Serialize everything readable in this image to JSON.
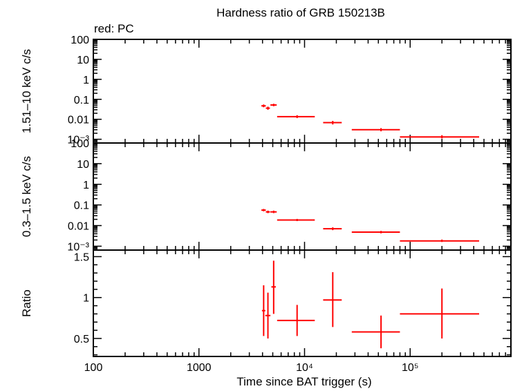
{
  "chart_data": {
    "type": "scatter",
    "title": "Hardness ratio of GRB 150213B",
    "series_label": "red: PC",
    "xlabel": "Time since BAT trigger (s)",
    "xscale": "log",
    "xlim": [
      100,
      900000
    ],
    "x_tick_labels": [
      "100",
      "1000",
      "10⁴",
      "10⁵"
    ],
    "x_tick_values": [
      100,
      1000,
      10000,
      100000
    ],
    "color": "#ff0000",
    "panels": [
      {
        "id": "hard",
        "ylabel": "1.51–10 keV c/s",
        "yscale": "log",
        "ylim": [
          0.00065,
          100
        ],
        "y_tick_labels": [
          "100",
          "10",
          "1",
          "0.1",
          "0.01",
          "10⁻³"
        ],
        "y_tick_values": [
          100,
          10,
          1,
          0.1,
          0.01,
          0.001
        ],
        "points": [
          {
            "x": 4100,
            "xlo": 3900,
            "xhi": 4300,
            "y": 0.047,
            "ylo": 0.04,
            "yhi": 0.055
          },
          {
            "x": 4500,
            "xlo": 4300,
            "xhi": 4700,
            "y": 0.036,
            "ylo": 0.03,
            "yhi": 0.043
          },
          {
            "x": 5100,
            "xlo": 4750,
            "xhi": 5450,
            "y": 0.052,
            "ylo": 0.045,
            "yhi": 0.06
          },
          {
            "x": 8500,
            "xlo": 5500,
            "xhi": 12500,
            "y": 0.0135,
            "ylo": 0.0115,
            "yhi": 0.016
          },
          {
            "x": 18500,
            "xlo": 15000,
            "xhi": 22500,
            "y": 0.0068,
            "ylo": 0.0055,
            "yhi": 0.0083
          },
          {
            "x": 53000,
            "xlo": 28000,
            "xhi": 80000,
            "y": 0.003,
            "ylo": 0.0025,
            "yhi": 0.0036
          },
          {
            "x": 200000,
            "xlo": 80000,
            "xhi": 450000,
            "y": 0.0013,
            "ylo": 0.0011,
            "yhi": 0.0016
          }
        ]
      },
      {
        "id": "soft",
        "ylabel": "0.3–1.5 keV c/s",
        "yscale": "log",
        "ylim": [
          0.00065,
          100
        ],
        "y_tick_labels": [
          "100",
          "10",
          "1",
          "0.1",
          "0.01",
          "10⁻³"
        ],
        "y_tick_values": [
          100,
          10,
          1,
          0.1,
          0.01,
          0.001
        ],
        "points": [
          {
            "x": 4100,
            "xlo": 3900,
            "xhi": 4300,
            "y": 0.056,
            "ylo": 0.049,
            "yhi": 0.064
          },
          {
            "x": 4500,
            "xlo": 4300,
            "xhi": 4700,
            "y": 0.046,
            "ylo": 0.04,
            "yhi": 0.053
          },
          {
            "x": 5100,
            "xlo": 4750,
            "xhi": 5450,
            "y": 0.046,
            "ylo": 0.04,
            "yhi": 0.053
          },
          {
            "x": 8500,
            "xlo": 5500,
            "xhi": 12500,
            "y": 0.0185,
            "ylo": 0.0165,
            "yhi": 0.021
          },
          {
            "x": 18500,
            "xlo": 15000,
            "xhi": 22500,
            "y": 0.007,
            "ylo": 0.006,
            "yhi": 0.0082
          },
          {
            "x": 53000,
            "xlo": 28000,
            "xhi": 80000,
            "y": 0.0048,
            "ylo": 0.0042,
            "yhi": 0.0055
          },
          {
            "x": 200000,
            "xlo": 80000,
            "xhi": 450000,
            "y": 0.0018,
            "ylo": 0.0016,
            "yhi": 0.0021
          }
        ]
      },
      {
        "id": "ratio",
        "ylabel": "Ratio",
        "yscale": "linear",
        "ylim": [
          0.28,
          1.58
        ],
        "y_tick_labels": [
          "1.5",
          "1",
          "0.5"
        ],
        "y_tick_values": [
          1.5,
          1.0,
          0.5
        ],
        "points": [
          {
            "x": 4100,
            "xlo": 3950,
            "xhi": 4250,
            "y": 0.84,
            "ylo": 0.53,
            "yhi": 1.15
          },
          {
            "x": 4500,
            "xlo": 4250,
            "xhi": 4750,
            "y": 0.78,
            "ylo": 0.5,
            "yhi": 1.06
          },
          {
            "x": 5100,
            "xlo": 4850,
            "xhi": 5350,
            "y": 1.13,
            "ylo": 0.8,
            "yhi": 1.45
          },
          {
            "x": 8500,
            "xlo": 5500,
            "xhi": 12500,
            "y": 0.72,
            "ylo": 0.53,
            "yhi": 0.91
          },
          {
            "x": 18500,
            "xlo": 15000,
            "xhi": 22500,
            "y": 0.97,
            "ylo": 0.64,
            "yhi": 1.31
          },
          {
            "x": 53000,
            "xlo": 28000,
            "xhi": 80000,
            "y": 0.58,
            "ylo": 0.38,
            "yhi": 0.78
          },
          {
            "x": 200000,
            "xlo": 80000,
            "xhi": 450000,
            "y": 0.8,
            "ylo": 0.5,
            "yhi": 1.11
          }
        ]
      }
    ]
  }
}
